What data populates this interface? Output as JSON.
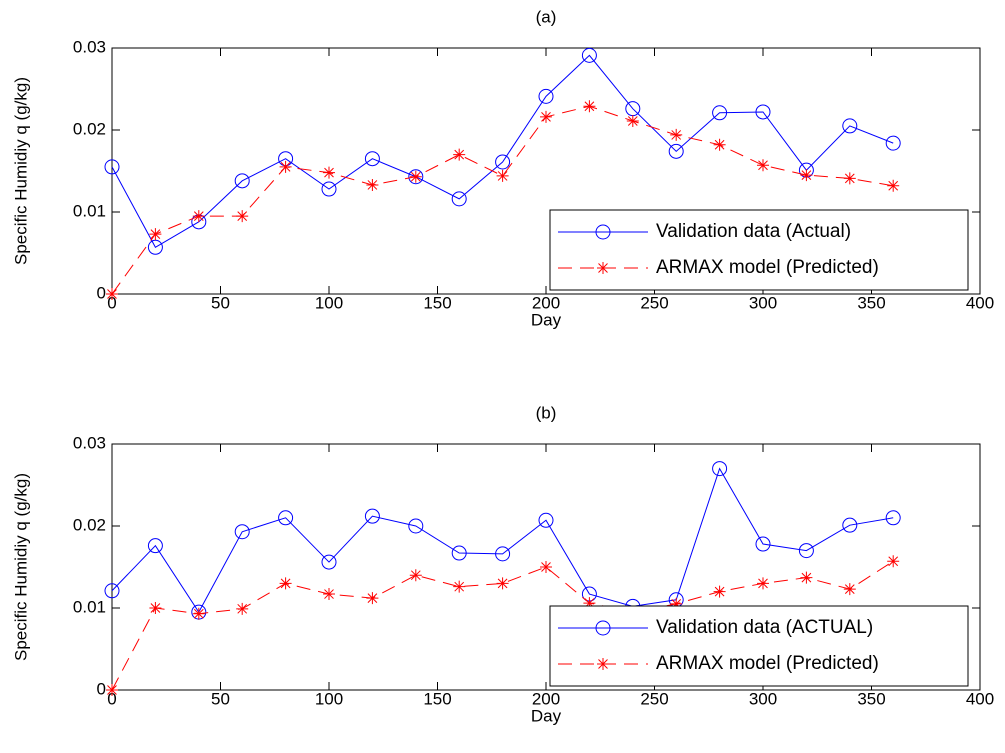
{
  "chart_data": [
    {
      "type": "line",
      "title": "(a)",
      "xlabel": "Day",
      "ylabel": "Specific Humidiy q (g/kg)",
      "x": [
        0,
        20,
        40,
        60,
        80,
        100,
        120,
        140,
        160,
        180,
        200,
        220,
        240,
        260,
        280,
        300,
        320,
        340,
        360
      ],
      "series": [
        {
          "name": "Validation data (Actual)",
          "color": "#0000ff",
          "linestyle": "solid",
          "marker": "circle",
          "values": [
            0.0155,
            0.0057,
            0.0088,
            0.0138,
            0.0165,
            0.0128,
            0.0165,
            0.0143,
            0.0116,
            0.0161,
            0.0241,
            0.0291,
            0.0226,
            0.0174,
            0.0221,
            0.0222,
            0.0151,
            0.0205,
            0.0184
          ]
        },
        {
          "name": "ARMAX model (Predicted)",
          "color": "#ff0000",
          "linestyle": "dashed",
          "marker": "star",
          "values": [
            0,
            0.0073,
            0.0095,
            0.0095,
            0.0155,
            0.0148,
            0.0133,
            0.0143,
            0.017,
            0.0144,
            0.0216,
            0.0229,
            0.0211,
            0.0194,
            0.0182,
            0.0157,
            0.0145,
            0.0141,
            0.0132
          ]
        }
      ],
      "xlim": [
        0,
        400
      ],
      "xticks": [
        0,
        50,
        100,
        150,
        200,
        250,
        300,
        350,
        400
      ],
      "ylim": [
        0,
        0.03
      ],
      "yticks": [
        0,
        0.01,
        0.02,
        0.03
      ],
      "legend": "lower right"
    },
    {
      "type": "line",
      "title": "(b)",
      "xlabel": "Day",
      "ylabel": "Specific Humidiy q (g/kg)",
      "x": [
        0,
        20,
        40,
        60,
        80,
        100,
        120,
        140,
        160,
        180,
        200,
        220,
        240,
        260,
        280,
        300,
        320,
        340,
        360
      ],
      "series": [
        {
          "name": "Validation data (ACTUAL)",
          "color": "#0000ff",
          "linestyle": "solid",
          "marker": "circle",
          "values": [
            0.0121,
            0.0176,
            0.0095,
            0.0193,
            0.021,
            0.0156,
            0.0212,
            0.02,
            0.0167,
            0.0166,
            0.0207,
            0.0117,
            0.0102,
            0.011,
            0.027,
            0.0178,
            0.017,
            0.0201,
            0.021
          ]
        },
        {
          "name": "ARMAX model (Predicted)",
          "color": "#ff0000",
          "linestyle": "dashed",
          "marker": "star",
          "values": [
            0,
            0.01,
            0.0093,
            0.0099,
            0.013,
            0.0117,
            0.0112,
            0.014,
            0.0126,
            0.013,
            0.015,
            0.0106,
            0.0095,
            0.0105,
            0.012,
            0.013,
            0.0137,
            0.0123,
            0.0157
          ]
        }
      ],
      "xlim": [
        0,
        400
      ],
      "xticks": [
        0,
        50,
        100,
        150,
        200,
        250,
        300,
        350,
        400
      ],
      "ylim": [
        0,
        0.03
      ],
      "yticks": [
        0,
        0.01,
        0.02,
        0.03
      ],
      "legend": "lower right"
    }
  ]
}
